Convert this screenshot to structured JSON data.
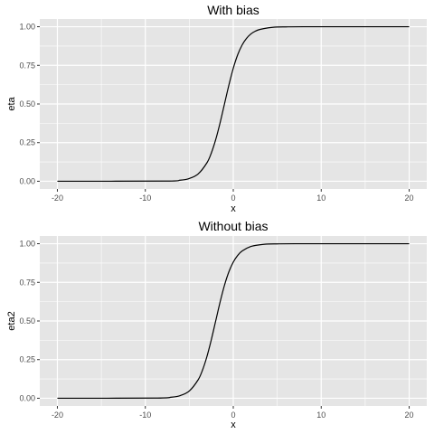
{
  "chart_data": [
    {
      "type": "line",
      "title": "With bias",
      "xlabel": "x",
      "ylabel": "eta",
      "xlim": [
        -20,
        20
      ],
      "ylim": [
        0,
        1
      ],
      "x_ticks": [
        "-20",
        "-10",
        "0",
        "10",
        "20"
      ],
      "y_ticks": [
        "0.00",
        "0.25",
        "0.50",
        "0.75",
        "1.00"
      ],
      "grid": true,
      "panel_background": "#e5e5e5",
      "grid_color": "#ffffff",
      "line_color": "#000000",
      "x": [
        -20,
        -8,
        -6,
        -5,
        -4,
        -3,
        -2.5,
        -2,
        -1.5,
        -1,
        -0.5,
        0,
        0.5,
        1,
        1.5,
        2,
        2.5,
        3,
        4,
        5,
        6,
        8,
        20
      ],
      "y": [
        0.0,
        0.001,
        0.007,
        0.018,
        0.047,
        0.119,
        0.182,
        0.269,
        0.378,
        0.5,
        0.622,
        0.731,
        0.818,
        0.881,
        0.924,
        0.953,
        0.971,
        0.982,
        0.993,
        0.998,
        0.999,
        1.0,
        1.0
      ]
    },
    {
      "type": "line",
      "title": "Without bias",
      "xlabel": "x",
      "ylabel": "eta2",
      "xlim": [
        -20,
        20
      ],
      "ylim": [
        0,
        1
      ],
      "x_ticks": [
        "-20",
        "-10",
        "0",
        "10",
        "20"
      ],
      "y_ticks": [
        "0.00",
        "0.25",
        "0.50",
        "0.75",
        "1.00"
      ],
      "grid": true,
      "panel_background": "#e5e5e5",
      "grid_color": "#ffffff",
      "line_color": "#000000",
      "x": [
        -20,
        -9,
        -7,
        -6,
        -5,
        -4,
        -3.5,
        -3,
        -2.5,
        -2,
        -1.5,
        -1,
        -0.5,
        0,
        0.5,
        1,
        2,
        3,
        4,
        5,
        7,
        20
      ],
      "y": [
        0.0,
        0.001,
        0.007,
        0.018,
        0.047,
        0.119,
        0.182,
        0.269,
        0.378,
        0.5,
        0.622,
        0.731,
        0.818,
        0.881,
        0.924,
        0.953,
        0.982,
        0.993,
        0.998,
        0.999,
        1.0,
        1.0
      ]
    }
  ]
}
